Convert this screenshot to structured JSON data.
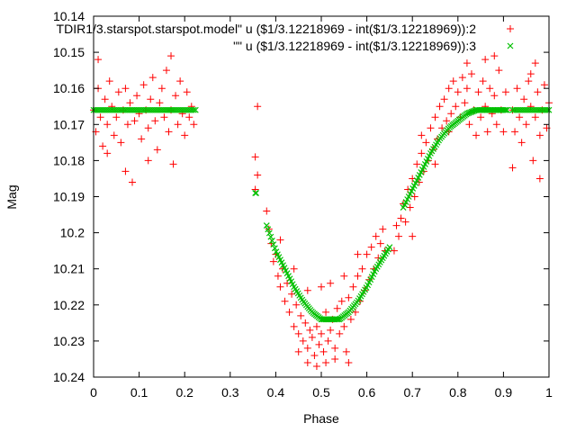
{
  "chart_data": {
    "type": "scatter",
    "title": "",
    "xlabel": "Phase",
    "ylabel": "Mag",
    "xlim": [
      0,
      1
    ],
    "ylim": [
      10.24,
      10.14
    ],
    "y_inverted": true,
    "x_ticks": [
      "0",
      "0.1",
      "0.2",
      "0.3",
      "0.4",
      "0.5",
      "0.6",
      "0.7",
      "0.8",
      "0.9",
      "1"
    ],
    "y_ticks": [
      "10.14",
      "10.15",
      "10.16",
      "10.17",
      "10.18",
      "10.19",
      "10.2",
      "10.21",
      "10.22",
      "10.23",
      "10.24"
    ],
    "grid": false,
    "legend_position": "top-right",
    "series": [
      {
        "name": "TDIR1/3.starspot.starspot.model\" u ($1/3.12218969 - int($1/3.12218969)):2",
        "marker": "plus",
        "color": "#ff0000",
        "points": [
          [
            0.0,
            10.166
          ],
          [
            0.005,
            10.172
          ],
          [
            0.01,
            10.16
          ],
          [
            0.015,
            10.168
          ],
          [
            0.02,
            10.176
          ],
          [
            0.025,
            10.163
          ],
          [
            0.03,
            10.17
          ],
          [
            0.035,
            10.158
          ],
          [
            0.04,
            10.165
          ],
          [
            0.045,
            10.173
          ],
          [
            0.05,
            10.168
          ],
          [
            0.055,
            10.161
          ],
          [
            0.06,
            10.175
          ],
          [
            0.065,
            10.166
          ],
          [
            0.07,
            10.16
          ],
          [
            0.075,
            10.17
          ],
          [
            0.08,
            10.164
          ],
          [
            0.085,
            10.186
          ],
          [
            0.09,
            10.169
          ],
          [
            0.095,
            10.162
          ],
          [
            0.1,
            10.167
          ],
          [
            0.105,
            10.174
          ],
          [
            0.11,
            10.159
          ],
          [
            0.115,
            10.166
          ],
          [
            0.12,
            10.171
          ],
          [
            0.125,
            10.163
          ],
          [
            0.13,
            10.157
          ],
          [
            0.135,
            10.169
          ],
          [
            0.14,
            10.177
          ],
          [
            0.145,
            10.164
          ],
          [
            0.15,
            10.16
          ],
          [
            0.155,
            10.168
          ],
          [
            0.16,
            10.155
          ],
          [
            0.165,
            10.172
          ],
          [
            0.17,
            10.166
          ],
          [
            0.175,
            10.181
          ],
          [
            0.18,
            10.162
          ],
          [
            0.185,
            10.17
          ],
          [
            0.19,
            10.158
          ],
          [
            0.195,
            10.167
          ],
          [
            0.2,
            10.173
          ],
          [
            0.205,
            10.161
          ],
          [
            0.21,
            10.168
          ],
          [
            0.215,
            10.165
          ],
          [
            0.22,
            10.17
          ],
          [
            0.01,
            10.152
          ],
          [
            0.03,
            10.178
          ],
          [
            0.07,
            10.183
          ],
          [
            0.12,
            10.18
          ],
          [
            0.17,
            10.151
          ],
          [
            0.355,
            10.188
          ],
          [
            0.36,
            10.165
          ],
          [
            0.355,
            10.179
          ],
          [
            0.36,
            10.184
          ],
          [
            0.38,
            10.194
          ],
          [
            0.385,
            10.199
          ],
          [
            0.39,
            10.203
          ],
          [
            0.395,
            10.208
          ],
          [
            0.4,
            10.206
          ],
          [
            0.405,
            10.212
          ],
          [
            0.41,
            10.215
          ],
          [
            0.415,
            10.21
          ],
          [
            0.42,
            10.219
          ],
          [
            0.425,
            10.214
          ],
          [
            0.43,
            10.222
          ],
          [
            0.435,
            10.217
          ],
          [
            0.44,
            10.226
          ],
          [
            0.445,
            10.22
          ],
          [
            0.45,
            10.228
          ],
          [
            0.455,
            10.223
          ],
          [
            0.46,
            10.23
          ],
          [
            0.465,
            10.225
          ],
          [
            0.47,
            10.232
          ],
          [
            0.475,
            10.227
          ],
          [
            0.48,
            10.229
          ],
          [
            0.485,
            10.234
          ],
          [
            0.49,
            10.226
          ],
          [
            0.495,
            10.231
          ],
          [
            0.5,
            10.228
          ],
          [
            0.505,
            10.233
          ],
          [
            0.51,
            10.222
          ],
          [
            0.515,
            10.23
          ],
          [
            0.52,
            10.227
          ],
          [
            0.525,
            10.224
          ],
          [
            0.53,
            10.232
          ],
          [
            0.535,
            10.221
          ],
          [
            0.54,
            10.228
          ],
          [
            0.545,
            10.219
          ],
          [
            0.55,
            10.226
          ],
          [
            0.555,
            10.233
          ],
          [
            0.56,
            10.218
          ],
          [
            0.565,
            10.224
          ],
          [
            0.57,
            10.215
          ],
          [
            0.575,
            10.222
          ],
          [
            0.58,
            10.212
          ],
          [
            0.585,
            10.219
          ],
          [
            0.59,
            10.21
          ],
          [
            0.595,
            10.216
          ],
          [
            0.6,
            10.206
          ],
          [
            0.605,
            10.213
          ],
          [
            0.61,
            10.204
          ],
          [
            0.615,
            10.21
          ],
          [
            0.62,
            10.201
          ],
          [
            0.625,
            10.207
          ],
          [
            0.63,
            10.203
          ],
          [
            0.635,
            10.199
          ],
          [
            0.64,
            10.205
          ],
          [
            0.41,
            10.202
          ],
          [
            0.44,
            10.21
          ],
          [
            0.47,
            10.216
          ],
          [
            0.5,
            10.215
          ],
          [
            0.52,
            10.214
          ],
          [
            0.55,
            10.212
          ],
          [
            0.58,
            10.206
          ],
          [
            0.47,
            10.236
          ],
          [
            0.49,
            10.237
          ],
          [
            0.53,
            10.235
          ],
          [
            0.56,
            10.236
          ],
          [
            0.45,
            10.233
          ],
          [
            0.51,
            10.236
          ],
          [
            0.67,
            10.201
          ],
          [
            0.675,
            10.196
          ],
          [
            0.68,
            10.192
          ],
          [
            0.685,
            10.197
          ],
          [
            0.69,
            10.188
          ],
          [
            0.695,
            10.193
          ],
          [
            0.7,
            10.185
          ],
          [
            0.705,
            10.19
          ],
          [
            0.71,
            10.181
          ],
          [
            0.715,
            10.186
          ],
          [
            0.72,
            10.178
          ],
          [
            0.725,
            10.183
          ],
          [
            0.73,
            10.175
          ],
          [
            0.735,
            10.18
          ],
          [
            0.74,
            10.171
          ],
          [
            0.745,
            10.177
          ],
          [
            0.75,
            10.168
          ],
          [
            0.755,
            10.174
          ],
          [
            0.76,
            10.165
          ],
          [
            0.765,
            10.171
          ],
          [
            0.77,
            10.163
          ],
          [
            0.775,
            10.169
          ],
          [
            0.78,
            10.16
          ],
          [
            0.785,
            10.167
          ],
          [
            0.79,
            10.158
          ],
          [
            0.795,
            10.165
          ],
          [
            0.8,
            10.161
          ],
          [
            0.805,
            10.168
          ],
          [
            0.81,
            10.157
          ],
          [
            0.815,
            10.164
          ],
          [
            0.82,
            10.16
          ],
          [
            0.825,
            10.17
          ],
          [
            0.83,
            10.156
          ],
          [
            0.835,
            10.166
          ],
          [
            0.84,
            10.173
          ],
          [
            0.845,
            10.161
          ],
          [
            0.85,
            10.168
          ],
          [
            0.855,
            10.158
          ],
          [
            0.86,
            10.165
          ],
          [
            0.865,
            10.172
          ],
          [
            0.87,
            10.16
          ],
          [
            0.875,
            10.167
          ],
          [
            0.88,
            10.162
          ],
          [
            0.885,
            10.17
          ],
          [
            0.89,
            10.155
          ],
          [
            0.895,
            10.166
          ],
          [
            0.9,
            10.172
          ],
          [
            0.905,
            10.161
          ],
          [
            0.92,
            10.166
          ],
          [
            0.925,
            10.172
          ],
          [
            0.93,
            10.16
          ],
          [
            0.935,
            10.168
          ],
          [
            0.94,
            10.175
          ],
          [
            0.945,
            10.163
          ],
          [
            0.95,
            10.17
          ],
          [
            0.955,
            10.158
          ],
          [
            0.96,
            10.165
          ],
          [
            0.965,
            10.18
          ],
          [
            0.97,
            10.168
          ],
          [
            0.975,
            10.161
          ],
          [
            0.98,
            10.173
          ],
          [
            0.985,
            10.166
          ],
          [
            0.99,
            10.159
          ],
          [
            0.995,
            10.171
          ],
          [
            1.0,
            10.164
          ],
          [
            0.97,
            10.153
          ],
          [
            0.98,
            10.185
          ],
          [
            0.92,
            10.182
          ],
          [
            0.66,
            10.205
          ],
          [
            0.665,
            10.198
          ],
          [
            0.7,
            10.201
          ],
          [
            0.72,
            10.173
          ],
          [
            0.75,
            10.181
          ],
          [
            0.78,
            10.172
          ],
          [
            0.82,
            10.153
          ],
          [
            0.86,
            10.152
          ],
          [
            0.88,
            10.151
          ],
          [
            0.96,
            10.156
          ]
        ]
      },
      {
        "name": "\"\" u ($1/3.12218969 - int($1/3.12218969)):3",
        "marker": "cross",
        "color": "#00c000",
        "segments": [
          {
            "x0": 0.0,
            "x1": 0.225,
            "step": 0.004
          },
          {
            "x0": 0.355,
            "x1": 0.358,
            "step": 0.002
          },
          {
            "x0": 0.38,
            "x1": 0.65,
            "step": 0.003
          },
          {
            "x0": 0.68,
            "x1": 0.91,
            "step": 0.003
          },
          {
            "x0": 0.92,
            "x1": 1.0,
            "step": 0.004
          }
        ],
        "points": [
          [
            0.0,
            10.166
          ],
          [
            0.225,
            10.166
          ],
          [
            0.355,
            10.189
          ],
          [
            0.358,
            10.189
          ],
          [
            0.38,
            10.198
          ],
          [
            0.4,
            10.205
          ],
          [
            0.42,
            10.21
          ],
          [
            0.44,
            10.215
          ],
          [
            0.46,
            10.219
          ],
          [
            0.48,
            10.222
          ],
          [
            0.5,
            10.224
          ],
          [
            0.52,
            10.224
          ],
          [
            0.54,
            10.224
          ],
          [
            0.56,
            10.222
          ],
          [
            0.58,
            10.219
          ],
          [
            0.6,
            10.215
          ],
          [
            0.62,
            10.21
          ],
          [
            0.64,
            10.206
          ],
          [
            0.65,
            10.204
          ],
          [
            0.68,
            10.193
          ],
          [
            0.7,
            10.188
          ],
          [
            0.72,
            10.183
          ],
          [
            0.74,
            10.178
          ],
          [
            0.76,
            10.174
          ],
          [
            0.78,
            10.171
          ],
          [
            0.8,
            10.169
          ],
          [
            0.82,
            10.167
          ],
          [
            0.84,
            10.166
          ],
          [
            0.86,
            10.166
          ],
          [
            0.88,
            10.166
          ],
          [
            0.91,
            10.166
          ],
          [
            0.92,
            10.166
          ],
          [
            1.0,
            10.166
          ]
        ]
      }
    ]
  }
}
